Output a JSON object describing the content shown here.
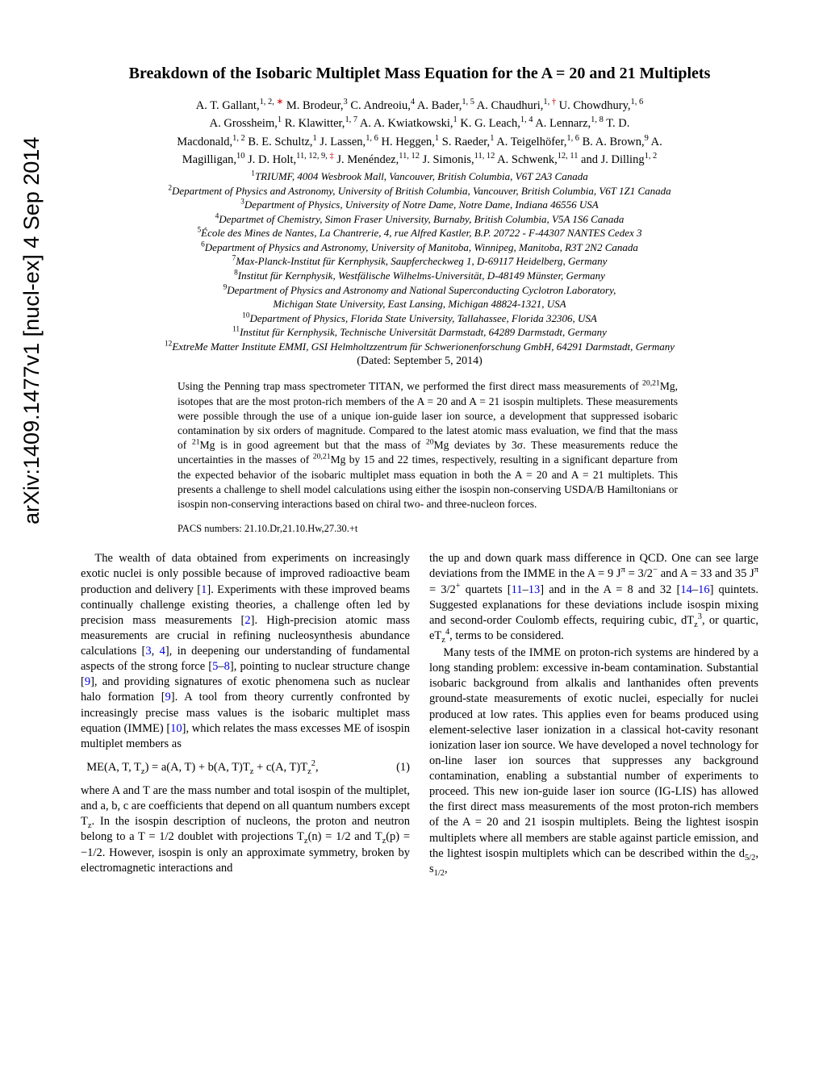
{
  "arxiv": "arXiv:1409.1477v1  [nucl-ex]  4 Sep 2014",
  "title": "Breakdown of the Isobaric Multiplet Mass Equation for the A = 20 and 21 Multiplets",
  "authors_line1": "A. T. Gallant,",
  "authors_sup1": "1, 2, ",
  "authors_star": "∗",
  "authors_line1b": " M. Brodeur,",
  "authors_sup1b": "3",
  "authors_line1c": " C. Andreoiu,",
  "authors_sup1c": "4",
  "authors_line1d": " A. Bader,",
  "authors_sup1d": "1, 5",
  "authors_line1e": " A. Chaudhuri,",
  "authors_sup1e": "1, ",
  "authors_dagger": "†",
  "authors_line1f": " U. Chowdhury,",
  "authors_sup1f": "1, 6",
  "authors_line2a": "A. Grossheim,",
  "authors_sup2a": "1",
  "authors_line2b": " R. Klawitter,",
  "authors_sup2b": "1, 7",
  "authors_line2c": " A. A. Kwiatkowski,",
  "authors_sup2c": "1",
  "authors_line2d": " K. G. Leach,",
  "authors_sup2d": "1, 4",
  "authors_line2e": " A. Lennarz,",
  "authors_sup2e": "1, 8",
  "authors_line2f": " T. D.",
  "authors_line3a": "Macdonald,",
  "authors_sup3a": "1, 2",
  "authors_line3b": " B. E. Schultz,",
  "authors_sup3b": "1",
  "authors_line3c": " J. Lassen,",
  "authors_sup3c": "1, 6",
  "authors_line3d": " H. Heggen,",
  "authors_sup3d": "1",
  "authors_line3e": " S. Raeder,",
  "authors_sup3e": "1",
  "authors_line3f": " A. Teigelhöfer,",
  "authors_sup3f": "1, 6",
  "authors_line3g": " B. A. Brown,",
  "authors_sup3g": "9",
  "authors_line3h": " A.",
  "authors_line4a": "Magilligan,",
  "authors_sup4a": "10",
  "authors_line4b": " J. D. Holt,",
  "authors_sup4b": "11, 12, 9, ",
  "authors_ddagger": "‡",
  "authors_line4c": " J. Menéndez,",
  "authors_sup4c": "11, 12",
  "authors_line4d": " J. Simonis,",
  "authors_sup4d": "11, 12",
  "authors_line4e": " A. Schwenk,",
  "authors_sup4e": "12, 11",
  "authors_line4f": " and J. Dilling",
  "authors_sup4f": "1, 2",
  "aff1_sup": "1",
  "aff1": "TRIUMF, 4004 Wesbrook Mall, Vancouver, British Columbia, V6T 2A3 Canada",
  "aff2_sup": "2",
  "aff2": "Department of Physics and Astronomy, University of British Columbia, Vancouver, British Columbia, V6T 1Z1 Canada",
  "aff3_sup": "3",
  "aff3": "Department of Physics, University of Notre Dame, Notre Dame, Indiana 46556 USA",
  "aff4_sup": "4",
  "aff4": "Departmet of Chemistry, Simon Fraser University, Burnaby, British Columbia, V5A 1S6 Canada",
  "aff5_sup": "5",
  "aff5": "École des Mines de Nantes, La Chantrerie, 4, rue Alfred Kastler, B.P. 20722 - F-44307 NANTES Cedex 3",
  "aff6_sup": "6",
  "aff6": "Department of Physics and Astronomy, University of Manitoba, Winnipeg, Manitoba, R3T 2N2 Canada",
  "aff7_sup": "7",
  "aff7": "Max-Planck-Institut für Kernphysik, Saupfercheckweg 1, D-69117 Heidelberg, Germany",
  "aff8_sup": "8",
  "aff8": "Institut für Kernphysik, Westfälische Wilhelms-Universität, D-48149 Münster, Germany",
  "aff9_sup": "9",
  "aff9a": "Department of Physics and Astronomy and National Superconducting Cyclotron Laboratory,",
  "aff9b": "Michigan State University, East Lansing, Michigan 48824-1321, USA",
  "aff10_sup": "10",
  "aff10": "Department of Physics, Florida State University, Tallahassee, Florida 32306, USA",
  "aff11_sup": "11",
  "aff11": "Institut für Kernphysik, Technische Universität Darmstadt, 64289 Darmstadt, Germany",
  "aff12_sup": "12",
  "aff12": "ExtreMe Matter Institute EMMI, GSI Helmholtzzentrum für Schwerionenforschung GmbH, 64291 Darmstadt, Germany",
  "dated": "(Dated: September 5, 2014)",
  "abstract_p1": "Using the Penning trap mass spectrometer TITAN, we performed the first direct mass measurements of ",
  "abstract_p1_iso": "20,21",
  "abstract_p1b": "Mg, isotopes that are the most proton-rich members of the A = 20 and A = 21 isospin multiplets. These measurements were possible through the use of a unique ion-guide laser ion source, a development that suppressed isobaric contamination by six orders of magnitude. Compared to the latest atomic mass evaluation, we find that the mass of ",
  "abstract_p1_21": "21",
  "abstract_p1c": "Mg is in good agreement but that the mass of ",
  "abstract_p1_20": "20",
  "abstract_p1d": "Mg deviates by 3σ. These measurements reduce the uncertainties in the masses of ",
  "abstract_p1_2021": "20,21",
  "abstract_p1e": "Mg by 15 and 22 times, respectively, resulting in a significant departure from the expected behavior of the isobaric multiplet mass equation in both the A = 20 and A = 21 multiplets. This presents a challenge to shell model calculations using either the isospin non-conserving USDA/B Hamiltonians or isospin non-conserving interactions based on chiral two- and three-nucleon forces.",
  "pacs": "PACS numbers: 21.10.Dr,21.10.Hw,27.30.+t",
  "col1_p1a": "The wealth of data obtained from experiments on increasingly exotic nuclei is only possible because of improved radioactive beam production and delivery [",
  "ref1": "1",
  "col1_p1b": "]. Experiments with these improved beams continually challenge existing theories, a challenge often led by precision mass measurements [",
  "ref2": "2",
  "col1_p1c": "]. High-precision atomic mass measurements are crucial in refining nucleosynthesis abundance calculations [",
  "ref3": "3",
  "ref4": "4",
  "col1_p1d": "], in deepening our understanding of fundamental aspects of the strong force [",
  "ref5": "5",
  "ref8": "8",
  "col1_p1e": "], pointing to nuclear structure change [",
  "ref9": "9",
  "col1_p1f": "], and providing signatures of exotic phenomena such as nuclear halo formation [",
  "col1_p1g": "]. A tool from theory currently confronted by increasingly precise mass values is the isobaric multiplet mass equation (IMME) [",
  "ref10": "10",
  "col1_p1h": "], which relates the mass excesses ME of isospin multiplet members as",
  "equation": "ME(A, T, T",
  "eq_z": "z",
  "eq_b": ") = a(A, T) + b(A, T)T",
  "eq_c": " + c(A, T)T",
  "eq_2": "2",
  "eq_comma": ",",
  "eq_num": "(1)",
  "col1_p2a": "where A and T are the mass number and total isospin of the multiplet, and a, b, c are coefficients that depend on all quantum numbers except T",
  "col1_p2b": ". In the isospin description of nucleons, the proton and neutron belong to a T = 1/2 doublet with projections T",
  "col1_p2c": "(n) = 1/2 and T",
  "col1_p2d": "(p) = −1/2. However, isospin is only an approximate symmetry, broken by electromagnetic interactions and",
  "col2_p1a": "the up and down quark mass difference in QCD. One can see large deviations from the IMME in the A = 9 J",
  "col2_pi": "π",
  "col2_p1b": " = 3/2",
  "col2_minus": "−",
  "col2_p1c": " and A = 33 and 35 J",
  "col2_p1d": " = 3/2",
  "col2_plus": "+",
  "col2_p1e": " quartets [",
  "ref11": "11",
  "ref13": "13",
  "col2_p1f": "] and in the A = 8 and 32 [",
  "ref14": "14",
  "ref16": "16",
  "col2_p1g": "] quintets. Suggested explanations for these deviations include isospin mixing and second-order Coulomb effects, requiring cubic, dT",
  "col2_3": "3",
  "col2_p1h": ", or quartic, eT",
  "col2_4": "4",
  "col2_p1i": ", terms to be considered.",
  "col2_p2": "Many tests of the IMME on proton-rich systems are hindered by a long standing problem: excessive in-beam contamination. Substantial isobaric background from alkalis and lanthanides often prevents ground-state measurements of exotic nuclei, especially for nuclei produced at low rates. This applies even for beams produced using element-selective laser ionization in a classical hot-cavity resonant ionization laser ion source. We have developed a novel technology for on-line laser ion sources that suppresses any background contamination, enabling a substantial number of experiments to proceed. This new ion-guide laser ion source (IG-LIS) has allowed the first direct mass measurements of the most proton-rich members of the A = 20 and 21 isospin multiplets. Being the lightest isospin multiplets where all members are stable against particle emission, and the lightest isospin multiplets which can be described within the d",
  "col2_52": "5/2",
  "col2_p2b": ", s",
  "col2_12": "1/2",
  "col2_p2c": ","
}
